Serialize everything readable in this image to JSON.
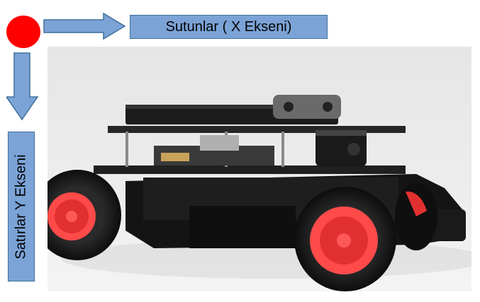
{
  "x_axis": {
    "label": "Sutunlar ( X Ekseni)"
  },
  "y_axis": {
    "label": "Satırlar Y Ekseni"
  },
  "colors": {
    "origin": "#ff0000",
    "arrow_fill": "#7ba3d6",
    "arrow_stroke": "#41719c"
  },
  "photo": {
    "subject": "robot-car"
  }
}
